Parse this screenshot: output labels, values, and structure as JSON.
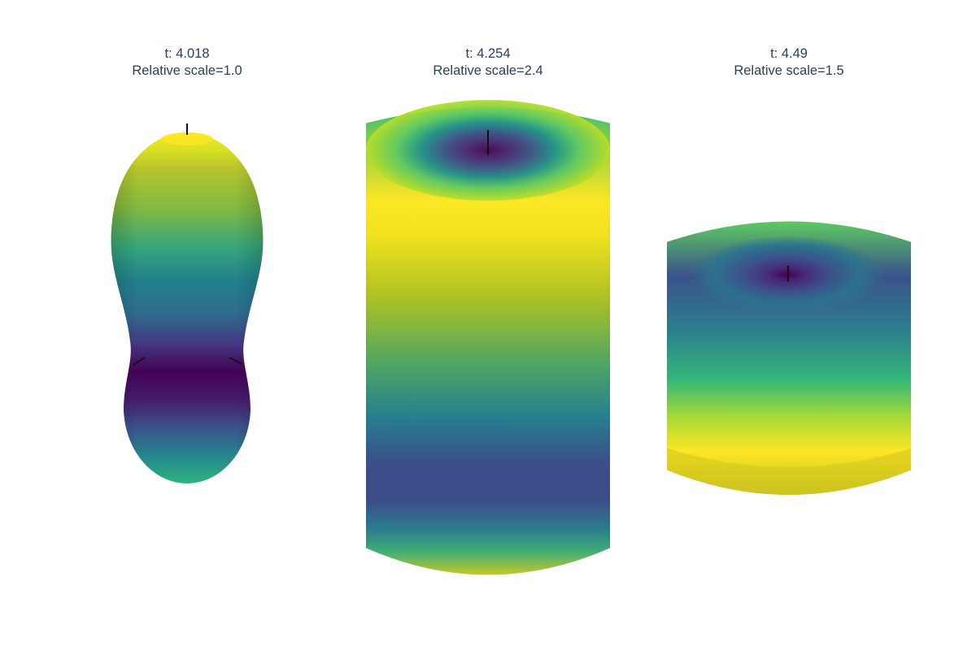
{
  "panels": [
    {
      "time_label": "t: 4.018",
      "scale_label": "Relative scale=1.0",
      "shape": "peanut"
    },
    {
      "time_label": "t: 4.254",
      "scale_label": "Relative scale=2.4",
      "shape": "cylinder"
    },
    {
      "time_label": "t: 4.49",
      "scale_label": "Relative scale=1.5",
      "shape": "oblate-cap"
    }
  ],
  "colorscale": "Viridis",
  "colors": {
    "viridis_dark": "#440154",
    "viridis_blue": "#31688e",
    "viridis_teal": "#21918c",
    "viridis_green": "#5ec962",
    "viridis_yellow": "#fde725",
    "title_text": "#2a3f5f"
  }
}
